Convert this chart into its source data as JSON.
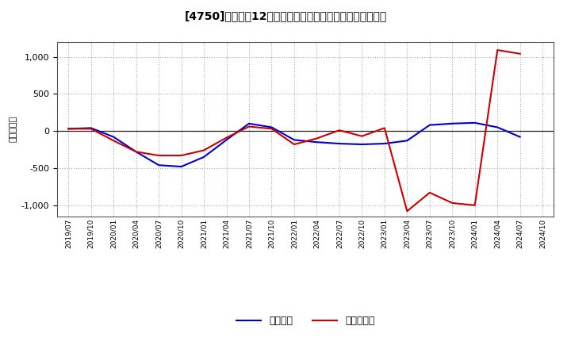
{
  "title": "[4750]　利益の12か月移動合計の対前年同期増減額の推移",
  "ylabel": "（百万円）",
  "background_color": "#ffffff",
  "plot_bg_color": "#ffffff",
  "grid_color": "#aaaaaa",
  "ylim": [
    -1150,
    1200
  ],
  "yticks": [
    -1000,
    -500,
    0,
    500,
    1000
  ],
  "legend_labels": [
    "経常利益",
    "当期純利益"
  ],
  "line_colors": [
    "#0000cc",
    "#cc0000"
  ],
  "x_labels": [
    "2019/07",
    "2019/10",
    "2020/01",
    "2020/04",
    "2020/07",
    "2020/10",
    "2021/01",
    "2021/04",
    "2021/07",
    "2021/10",
    "2022/01",
    "2022/04",
    "2022/07",
    "2022/10",
    "2023/01",
    "2023/04",
    "2023/07",
    "2023/10",
    "2024/01",
    "2024/04",
    "2024/07",
    "2024/10"
  ],
  "keijo": [
    30,
    40,
    -80,
    -280,
    -460,
    -480,
    -350,
    -120,
    100,
    50,
    -120,
    -150,
    -170,
    -180,
    -170,
    -130,
    80,
    100,
    110,
    50,
    -80,
    null
  ],
  "touki": [
    30,
    30,
    -130,
    -280,
    -330,
    -330,
    -260,
    -90,
    60,
    30,
    -180,
    -100,
    10,
    -70,
    40,
    -1080,
    -830,
    -970,
    -1000,
    1090,
    1040,
    null
  ]
}
